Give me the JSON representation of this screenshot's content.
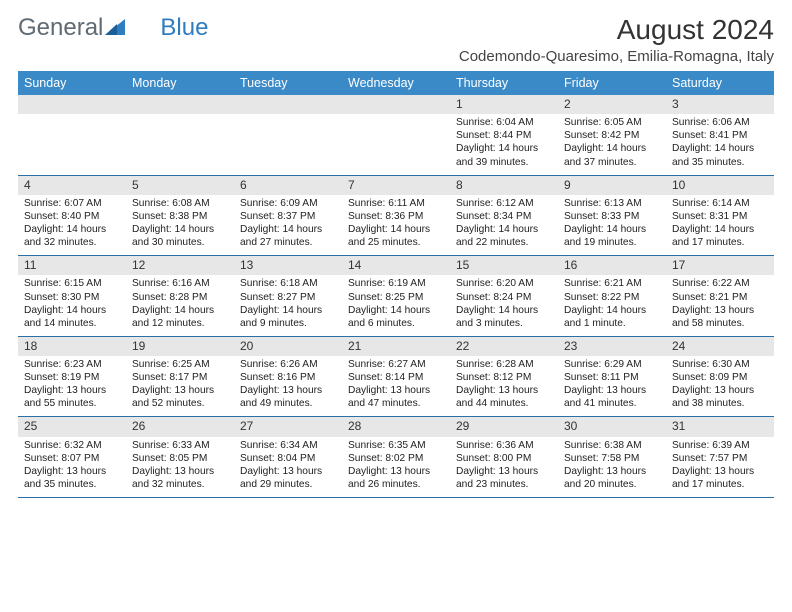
{
  "logo": {
    "text1": "General",
    "text2": "Blue"
  },
  "title": "August 2024",
  "location": "Codemondo-Quaresimo, Emilia-Romagna, Italy",
  "colors": {
    "header_bg": "#3a8ac8",
    "header_text": "#ffffff",
    "daynum_bg": "#e7e7e7",
    "cell_border": "#2b6fa8",
    "logo_gray": "#5f6a72",
    "logo_blue": "#2f7dbf",
    "body_text": "#222222"
  },
  "day_headers": [
    "Sunday",
    "Monday",
    "Tuesday",
    "Wednesday",
    "Thursday",
    "Friday",
    "Saturday"
  ],
  "weeks": [
    [
      null,
      null,
      null,
      null,
      {
        "n": "1",
        "sr": "6:04 AM",
        "ss": "8:44 PM",
        "dl": "14 hours and 39 minutes."
      },
      {
        "n": "2",
        "sr": "6:05 AM",
        "ss": "8:42 PM",
        "dl": "14 hours and 37 minutes."
      },
      {
        "n": "3",
        "sr": "6:06 AM",
        "ss": "8:41 PM",
        "dl": "14 hours and 35 minutes."
      }
    ],
    [
      {
        "n": "4",
        "sr": "6:07 AM",
        "ss": "8:40 PM",
        "dl": "14 hours and 32 minutes."
      },
      {
        "n": "5",
        "sr": "6:08 AM",
        "ss": "8:38 PM",
        "dl": "14 hours and 30 minutes."
      },
      {
        "n": "6",
        "sr": "6:09 AM",
        "ss": "8:37 PM",
        "dl": "14 hours and 27 minutes."
      },
      {
        "n": "7",
        "sr": "6:11 AM",
        "ss": "8:36 PM",
        "dl": "14 hours and 25 minutes."
      },
      {
        "n": "8",
        "sr": "6:12 AM",
        "ss": "8:34 PM",
        "dl": "14 hours and 22 minutes."
      },
      {
        "n": "9",
        "sr": "6:13 AM",
        "ss": "8:33 PM",
        "dl": "14 hours and 19 minutes."
      },
      {
        "n": "10",
        "sr": "6:14 AM",
        "ss": "8:31 PM",
        "dl": "14 hours and 17 minutes."
      }
    ],
    [
      {
        "n": "11",
        "sr": "6:15 AM",
        "ss": "8:30 PM",
        "dl": "14 hours and 14 minutes."
      },
      {
        "n": "12",
        "sr": "6:16 AM",
        "ss": "8:28 PM",
        "dl": "14 hours and 12 minutes."
      },
      {
        "n": "13",
        "sr": "6:18 AM",
        "ss": "8:27 PM",
        "dl": "14 hours and 9 minutes."
      },
      {
        "n": "14",
        "sr": "6:19 AM",
        "ss": "8:25 PM",
        "dl": "14 hours and 6 minutes."
      },
      {
        "n": "15",
        "sr": "6:20 AM",
        "ss": "8:24 PM",
        "dl": "14 hours and 3 minutes."
      },
      {
        "n": "16",
        "sr": "6:21 AM",
        "ss": "8:22 PM",
        "dl": "14 hours and 1 minute."
      },
      {
        "n": "17",
        "sr": "6:22 AM",
        "ss": "8:21 PM",
        "dl": "13 hours and 58 minutes."
      }
    ],
    [
      {
        "n": "18",
        "sr": "6:23 AM",
        "ss": "8:19 PM",
        "dl": "13 hours and 55 minutes."
      },
      {
        "n": "19",
        "sr": "6:25 AM",
        "ss": "8:17 PM",
        "dl": "13 hours and 52 minutes."
      },
      {
        "n": "20",
        "sr": "6:26 AM",
        "ss": "8:16 PM",
        "dl": "13 hours and 49 minutes."
      },
      {
        "n": "21",
        "sr": "6:27 AM",
        "ss": "8:14 PM",
        "dl": "13 hours and 47 minutes."
      },
      {
        "n": "22",
        "sr": "6:28 AM",
        "ss": "8:12 PM",
        "dl": "13 hours and 44 minutes."
      },
      {
        "n": "23",
        "sr": "6:29 AM",
        "ss": "8:11 PM",
        "dl": "13 hours and 41 minutes."
      },
      {
        "n": "24",
        "sr": "6:30 AM",
        "ss": "8:09 PM",
        "dl": "13 hours and 38 minutes."
      }
    ],
    [
      {
        "n": "25",
        "sr": "6:32 AM",
        "ss": "8:07 PM",
        "dl": "13 hours and 35 minutes."
      },
      {
        "n": "26",
        "sr": "6:33 AM",
        "ss": "8:05 PM",
        "dl": "13 hours and 32 minutes."
      },
      {
        "n": "27",
        "sr": "6:34 AM",
        "ss": "8:04 PM",
        "dl": "13 hours and 29 minutes."
      },
      {
        "n": "28",
        "sr": "6:35 AM",
        "ss": "8:02 PM",
        "dl": "13 hours and 26 minutes."
      },
      {
        "n": "29",
        "sr": "6:36 AM",
        "ss": "8:00 PM",
        "dl": "13 hours and 23 minutes."
      },
      {
        "n": "30",
        "sr": "6:38 AM",
        "ss": "7:58 PM",
        "dl": "13 hours and 20 minutes."
      },
      {
        "n": "31",
        "sr": "6:39 AM",
        "ss": "7:57 PM",
        "dl": "13 hours and 17 minutes."
      }
    ]
  ],
  "labels": {
    "sunrise": "Sunrise:",
    "sunset": "Sunset:",
    "daylight": "Daylight:"
  }
}
